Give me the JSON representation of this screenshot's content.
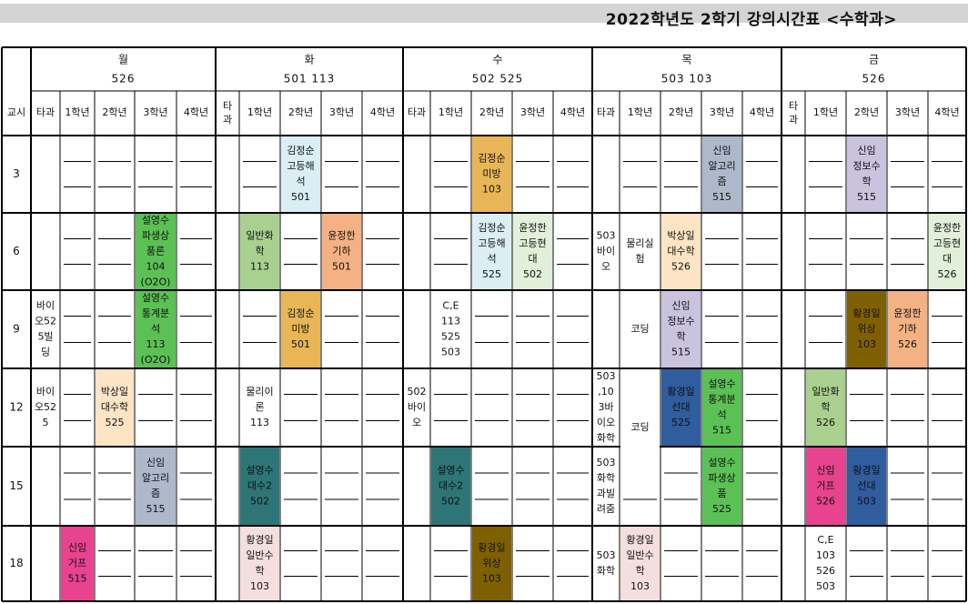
{
  "title": "2022학년도 2학기 강의시간표 <수학과>",
  "corner_label": "교시",
  "sub_labels": [
    "타과",
    "1학년",
    "2학년",
    "3학년",
    "4학년"
  ],
  "days": [
    {
      "name": "월",
      "rooms": "526"
    },
    {
      "name": "화",
      "rooms": "501 113"
    },
    {
      "name": "수",
      "rooms": "502 525"
    },
    {
      "name": "목",
      "rooms": "503 103"
    },
    {
      "name": "금",
      "rooms": "526"
    }
  ],
  "periods": [
    "3",
    "6",
    "9",
    "12",
    "15",
    "18"
  ],
  "colors": {
    "gray": "#adb9ca",
    "lightblue": "#daeef3",
    "orange": "#f4b183",
    "gold": "#e8b656",
    "green": "#5cc155",
    "lightgreen": "#a9d08e",
    "peach": "#fce4c4",
    "lavender": "#c9c3de",
    "mint": "#e2efd9",
    "brown": "#7f6000",
    "teal": "#2e7578",
    "navy": "#2f5d9e",
    "pink": "#e8438e",
    "lightpink": "#f4dede",
    "white": "#ffffff"
  },
  "blocks": [
    {
      "day": 0,
      "col": 3,
      "row": 1,
      "span": 2,
      "color": "green",
      "lines": [
        "설영수",
        "파생상",
        "품론",
        "104",
        "(O2O)"
      ]
    },
    {
      "day": 0,
      "col": 3,
      "row": 2,
      "span": 2,
      "color": "green",
      "lines": [
        "설영수",
        "통계분",
        "석",
        "113",
        "(O2O)"
      ]
    },
    {
      "day": 0,
      "col": 0,
      "row": 2,
      "span": 2,
      "color": "white",
      "lines": [
        "바이",
        "오52",
        "5빌",
        "딩"
      ]
    },
    {
      "day": 0,
      "col": 0,
      "row": 3,
      "span": 2,
      "color": "white",
      "lines": [
        "바이",
        "오52",
        "5"
      ]
    },
    {
      "day": 0,
      "col": 2,
      "row": 3,
      "span": 2,
      "color": "peach",
      "lines": [
        "박상일",
        "대수학",
        "525"
      ]
    },
    {
      "day": 0,
      "col": 3,
      "row": 4,
      "span": 2,
      "color": "gray",
      "lines": [
        "신임",
        "알고리",
        "즘",
        "515"
      ]
    },
    {
      "day": 0,
      "col": 1,
      "row": 5,
      "span": 2,
      "color": "pink",
      "lines": [
        "신임",
        "거프",
        "515"
      ]
    },
    {
      "day": 1,
      "col": 2,
      "row": 0,
      "span": 2,
      "color": "lightblue",
      "lines": [
        "김정순",
        "고등해",
        "석",
        "501"
      ]
    },
    {
      "day": 1,
      "col": 1,
      "row": 1,
      "span": 2,
      "color": "lightgreen",
      "lines": [
        "일반화",
        "학",
        "113"
      ]
    },
    {
      "day": 1,
      "col": 3,
      "row": 1,
      "span": 2,
      "color": "orange",
      "lines": [
        "윤정한",
        "기하",
        "501"
      ]
    },
    {
      "day": 1,
      "col": 2,
      "row": 2,
      "span": 2,
      "color": "gold",
      "lines": [
        "김정순",
        "미방",
        "501"
      ]
    },
    {
      "day": 1,
      "col": 1,
      "row": 3,
      "span": 2,
      "color": "white",
      "lines": [
        "물리이",
        "론",
        "113"
      ]
    },
    {
      "day": 1,
      "col": 1,
      "row": 4,
      "span": 2,
      "color": "teal",
      "lines": [
        "설영수",
        "대수2",
        "502"
      ]
    },
    {
      "day": 1,
      "col": 1,
      "row": 5,
      "span": 2,
      "color": "lightpink",
      "lines": [
        "황경일",
        "일반수",
        "학",
        "103"
      ]
    },
    {
      "day": 2,
      "col": 2,
      "row": 0,
      "span": 2,
      "color": "gold",
      "lines": [
        "김정순",
        "미방",
        "103"
      ]
    },
    {
      "day": 2,
      "col": 2,
      "row": 1,
      "span": 2,
      "color": "lightblue",
      "lines": [
        "김정순",
        "고등해",
        "석",
        "525"
      ]
    },
    {
      "day": 2,
      "col": 3,
      "row": 1,
      "span": 2,
      "color": "mint",
      "lines": [
        "윤정한",
        "고등현",
        "대",
        "502"
      ]
    },
    {
      "day": 2,
      "col": 1,
      "row": 2,
      "span": 2,
      "color": "white",
      "lines": [
        "C,E",
        "113",
        "525",
        "503"
      ]
    },
    {
      "day": 2,
      "col": 0,
      "row": 3,
      "span": 2,
      "color": "white",
      "lines": [
        "502",
        "바이",
        "오"
      ]
    },
    {
      "day": 2,
      "col": 1,
      "row": 4,
      "span": 2,
      "color": "teal",
      "lines": [
        "설영수",
        "대수2",
        "502"
      ]
    },
    {
      "day": 2,
      "col": 2,
      "row": 5,
      "span": 2,
      "color": "brown",
      "lines": [
        "황경일",
        "위상",
        "103"
      ]
    },
    {
      "day": 3,
      "col": 3,
      "row": 0,
      "span": 2,
      "color": "gray",
      "lines": [
        "신임",
        "알고리",
        "즘",
        "515"
      ]
    },
    {
      "day": 3,
      "col": 0,
      "row": 1,
      "span": 2,
      "color": "white",
      "lines": [
        "503",
        "바이",
        "오"
      ]
    },
    {
      "day": 3,
      "col": 1,
      "row": 1,
      "span": 2,
      "color": "white",
      "lines": [
        "물리실",
        "험"
      ]
    },
    {
      "day": 3,
      "col": 2,
      "row": 1,
      "span": 2,
      "color": "peach",
      "lines": [
        "박상일",
        "대수학",
        "526"
      ]
    },
    {
      "day": 3,
      "col": 1,
      "row": 2,
      "span": 2,
      "color": "white",
      "lines": [
        "코딩"
      ]
    },
    {
      "day": 3,
      "col": 2,
      "row": 2,
      "span": 2,
      "color": "lavender",
      "lines": [
        "신임",
        "정보수",
        "학",
        "515"
      ]
    },
    {
      "day": 3,
      "col": 0,
      "row": 3,
      "span": 2,
      "color": "white",
      "lines": [
        "503",
        ",10",
        "3바",
        "이오",
        "화학"
      ]
    },
    {
      "day": 3,
      "col": 2,
      "row": 3,
      "span": 2,
      "color": "navy",
      "lines": [
        "황경일",
        "선대",
        "525"
      ]
    },
    {
      "day": 3,
      "col": 3,
      "row": 3,
      "span": 2,
      "color": "green",
      "lines": [
        "설영수",
        "통계분",
        "석",
        "515"
      ]
    },
    {
      "day": 3,
      "col": 1,
      "row": 3,
      "span": 4,
      "color": "white",
      "lines": [
        "코딩"
      ]
    },
    {
      "day": 3,
      "col": 0,
      "row": 4,
      "span": 2,
      "color": "white",
      "lines": [
        "503",
        "화학",
        "과빌",
        "려줌"
      ]
    },
    {
      "day": 3,
      "col": 3,
      "row": 4,
      "span": 2,
      "color": "green",
      "lines": [
        "설영수",
        "파생상",
        "품",
        "525"
      ]
    },
    {
      "day": 3,
      "col": 0,
      "row": 5,
      "span": 2,
      "color": "white",
      "lines": [
        "503",
        "화학"
      ]
    },
    {
      "day": 3,
      "col": 1,
      "row": 5,
      "span": 2,
      "color": "lightpink",
      "lines": [
        "황경일",
        "일반수",
        "학",
        "103"
      ]
    },
    {
      "day": 4,
      "col": 2,
      "row": 0,
      "span": 2,
      "color": "lavender",
      "lines": [
        "신임",
        "정보수",
        "학",
        "515"
      ]
    },
    {
      "day": 4,
      "col": 4,
      "row": 1,
      "span": 2,
      "color": "mint",
      "lines": [
        "윤정한",
        "고등현",
        "대",
        "526"
      ]
    },
    {
      "day": 4,
      "col": 2,
      "row": 2,
      "span": 2,
      "color": "brown",
      "lines": [
        "황경일",
        "위상",
        "103"
      ]
    },
    {
      "day": 4,
      "col": 3,
      "row": 2,
      "span": 2,
      "color": "orange",
      "lines": [
        "윤정한",
        "기하",
        "526"
      ]
    },
    {
      "day": 4,
      "col": 1,
      "row": 3,
      "span": 2,
      "color": "lightgreen",
      "lines": [
        "일반화",
        "학",
        "526"
      ]
    },
    {
      "day": 4,
      "col": 1,
      "row": 4,
      "span": 2,
      "color": "pink",
      "lines": [
        "신임",
        "거프",
        "526"
      ]
    },
    {
      "day": 4,
      "col": 2,
      "row": 4,
      "span": 2,
      "color": "navy",
      "lines": [
        "황경일",
        "선대",
        "503"
      ]
    },
    {
      "day": 4,
      "col": 1,
      "row": 5,
      "span": 2,
      "color": "white",
      "lines": [
        "C,E",
        "103",
        "526",
        "503"
      ]
    }
  ]
}
